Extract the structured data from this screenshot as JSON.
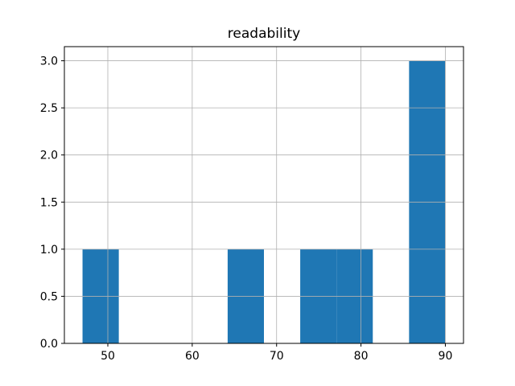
{
  "chart_data": {
    "type": "bar",
    "subtype": "histogram",
    "title": "readability",
    "xlabel": "",
    "ylabel": "",
    "bin_edges": [
      47.0,
      51.3,
      55.6,
      59.9,
      64.2,
      68.5,
      72.8,
      77.1,
      81.4,
      85.7,
      90.0
    ],
    "counts": [
      1,
      0,
      0,
      0,
      1,
      0,
      1,
      1,
      0,
      3
    ],
    "xlim": [
      44.85,
      92.15
    ],
    "ylim": [
      0,
      3.15
    ],
    "xticks": {
      "values": [
        50,
        60,
        70,
        80,
        90
      ],
      "labels": [
        "50",
        "60",
        "70",
        "80",
        "90"
      ]
    },
    "yticks": {
      "values": [
        0.0,
        0.5,
        1.0,
        1.5,
        2.0,
        2.5,
        3.0
      ],
      "labels": [
        "0.0",
        "0.5",
        "1.0",
        "1.5",
        "2.0",
        "2.5",
        "3.0"
      ]
    },
    "grid": true,
    "grid_on_top_of_bars": true,
    "legend": null,
    "colors": {
      "bar": "#1f77b4",
      "grid": "#b0b0b0",
      "spine": "#000000",
      "background": "#ffffff"
    }
  }
}
